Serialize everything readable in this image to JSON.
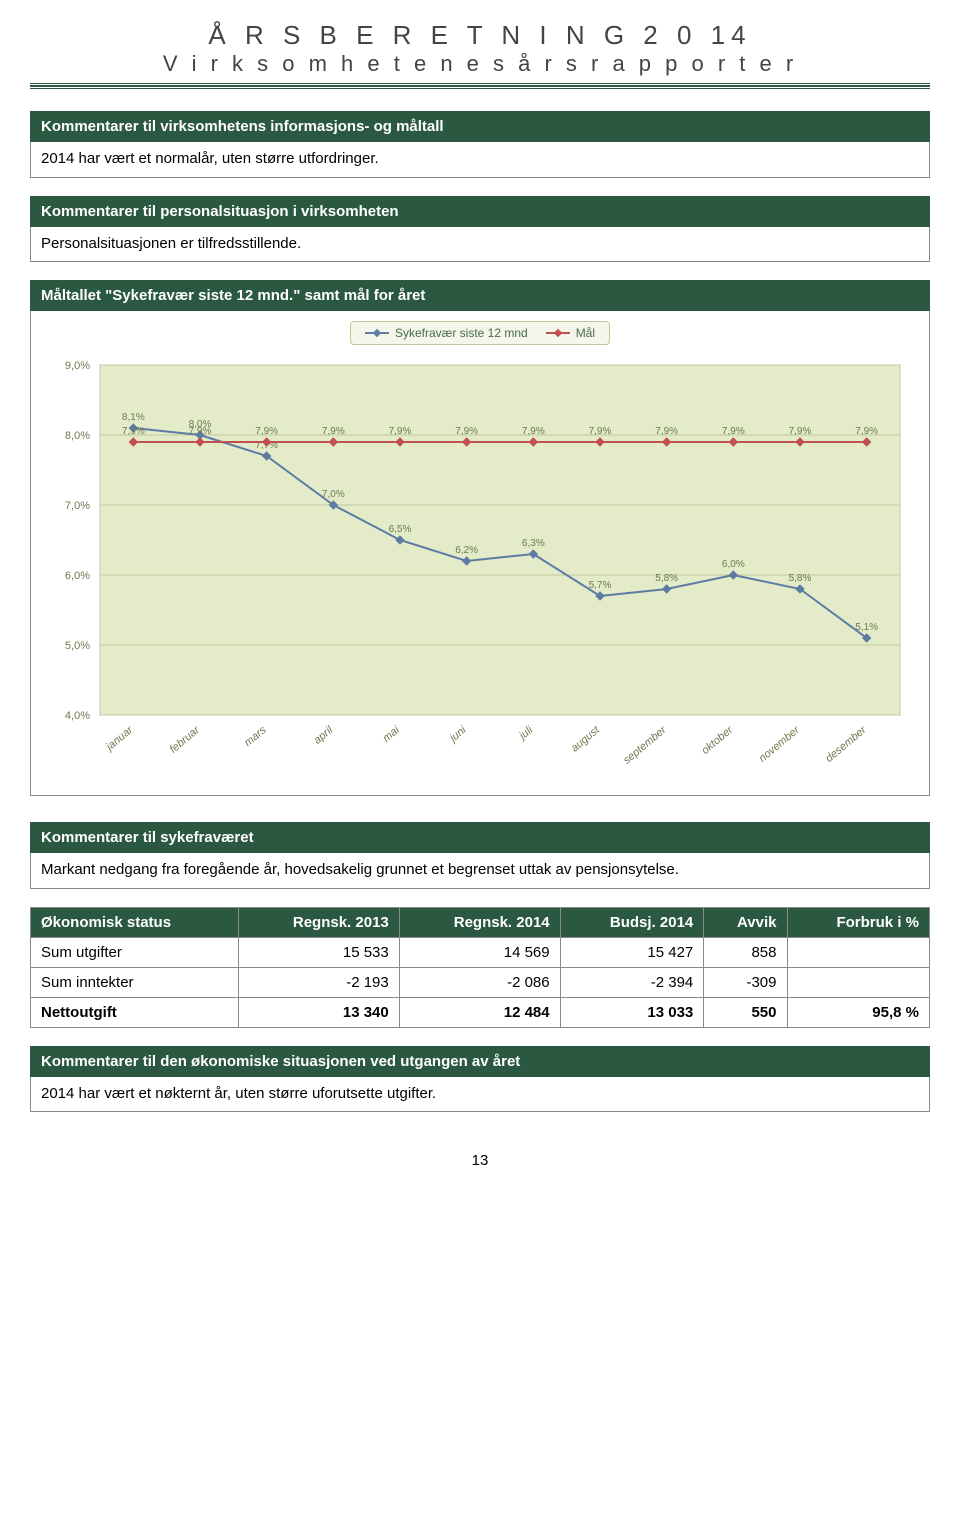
{
  "header": {
    "title": "Å R S B E R E T N I N G  2 0 14",
    "subtitle": "V i r k s o m h e t e n e s   å r s r a p p o r t e r"
  },
  "sections": {
    "info_goals": {
      "title": "Kommentarer til virksomhetens informasjons- og måltall",
      "body": "2014 har vært et normalår, uten større utfordringer."
    },
    "personnel": {
      "title": "Kommentarer til personalsituasjon i virksomheten",
      "body": "Personalsituasjonen er tilfredsstillende."
    },
    "chart_header": {
      "title": "Måltallet \"Sykefravær siste 12 mnd.\" samt mål for året"
    },
    "absence_comment": {
      "title": "Kommentarer til sykefraværet",
      "body": "Markant nedgang fra foregående år, hovedsakelig grunnet et begrenset uttak av pensjonsytelse."
    },
    "econ_comment": {
      "title": "Kommentarer til den økonomiske situasjonen ved utgangen av året",
      "body": "2014 har vært et nøkternt år, uten større uforutsette utgifter."
    }
  },
  "chart": {
    "type": "line",
    "background_color": "#e3ebc9",
    "grid_color": "#bfca9a",
    "axis_font_color": "#6b7b50",
    "label_fontsize": 11,
    "ylim": [
      4.0,
      9.0
    ],
    "ytick_step": 1.0,
    "y_format_suffix": ",0%",
    "categories": [
      "januar",
      "februar",
      "mars",
      "april",
      "mai",
      "juni",
      "juli",
      "august",
      "september",
      "oktober",
      "november",
      "desember"
    ],
    "series": [
      {
        "name": "Sykefravær siste 12 mnd",
        "color": "#5d7ba3",
        "marker": "diamond",
        "values": [
          8.1,
          8.0,
          7.7,
          7.0,
          6.5,
          6.2,
          6.3,
          5.7,
          5.8,
          6.0,
          5.8,
          5.1
        ],
        "labels": [
          "8,1%",
          "8,0%",
          "7,7%",
          "7,0%",
          "6,5%",
          "6,2%",
          "6,3%",
          "5,7%",
          "5,8%",
          "6,0%",
          "5,8%",
          "5,1%"
        ]
      },
      {
        "name": "Mål",
        "color": "#c0504d",
        "marker": "diamond",
        "values": [
          7.9,
          7.9,
          7.9,
          7.9,
          7.9,
          7.9,
          7.9,
          7.9,
          7.9,
          7.9,
          7.9,
          7.9
        ],
        "labels": [
          "7,9%",
          "7,9%",
          "7,9%",
          "7,9%",
          "7,9%",
          "7,9%",
          "7,9%",
          "7,9%",
          "7,9%",
          "7,9%",
          "7,9%",
          "7,9%"
        ]
      }
    ],
    "legend": {
      "items": [
        "Sykefravær siste 12 mnd",
        "Mål"
      ]
    }
  },
  "econ_table": {
    "columns": [
      "Økonomisk status",
      "Regnsk. 2013",
      "Regnsk. 2014",
      "Budsj. 2014",
      "Avvik",
      "Forbruk i %"
    ],
    "rows": [
      {
        "label": "Sum utgifter",
        "bold": false,
        "cells": [
          "15 533",
          "14 569",
          "15 427",
          "858",
          ""
        ]
      },
      {
        "label": "Sum inntekter",
        "bold": false,
        "cells": [
          "-2 193",
          "-2 086",
          "-2 394",
          "-309",
          ""
        ]
      },
      {
        "label": "Nettoutgift",
        "bold": true,
        "cells": [
          "13 340",
          "12 484",
          "13 033",
          "550",
          "95,8 %"
        ]
      }
    ]
  },
  "page_number": "13"
}
